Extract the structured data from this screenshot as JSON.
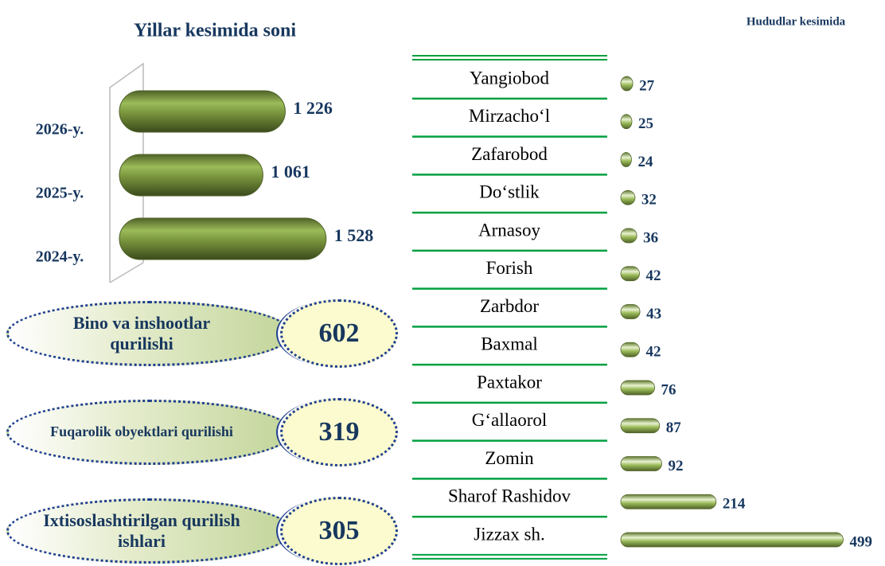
{
  "chart_data": [
    {
      "type": "bar",
      "orientation": "horizontal",
      "title": "Yillar kesimida soni",
      "categories": [
        "2026-y.",
        "2025-y.",
        "2024-y."
      ],
      "values": [
        1226,
        1061,
        1528
      ],
      "value_labels": [
        "1 226",
        "1 061",
        "1 528"
      ],
      "color": "#77933c"
    },
    {
      "type": "bar",
      "orientation": "horizontal",
      "title": "Hududlar kesimida",
      "categories": [
        "Yangiobod",
        "Mirzacho‘l",
        "Zafarobod",
        "Do‘stlik",
        "Arnasoy",
        "Forish",
        "Zarbdor",
        "Baxmal",
        "Paxtakor",
        "G‘allaorol",
        "Zomin",
        "Sharof Rashidov",
        "Jizzax sh."
      ],
      "values": [
        27,
        25,
        24,
        32,
        36,
        42,
        43,
        42,
        76,
        87,
        92,
        214,
        499
      ],
      "color": "#9bbb59"
    }
  ],
  "highlights": [
    {
      "label": "Bino va inshootlar qurilishi",
      "value": 602
    },
    {
      "label": "Fuqarolik obyektlari qurilishi",
      "value": 319
    },
    {
      "label": "Ixtisoslashtirilgan qurilish ishlari",
      "value": 305
    }
  ]
}
